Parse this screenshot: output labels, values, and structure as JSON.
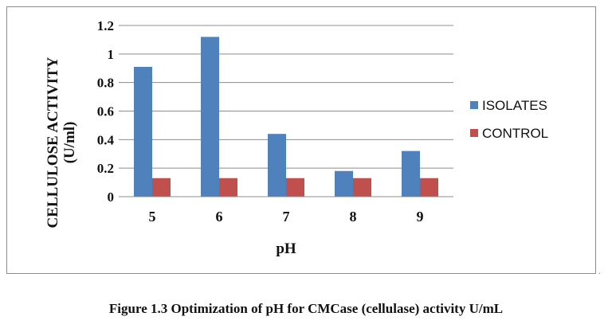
{
  "chart_data": {
    "type": "bar",
    "title": "",
    "xlabel": "pH",
    "ylabel_line1": "CELLULOSE ACTIVITY",
    "ylabel_line2": "(U/ml)",
    "categories": [
      "5",
      "6",
      "7",
      "8",
      "9"
    ],
    "series": [
      {
        "name": "ISOLATES",
        "color": "#4f81bd",
        "values": [
          0.91,
          1.12,
          0.44,
          0.18,
          0.32
        ]
      },
      {
        "name": "CONTROL",
        "color": "#c0504d",
        "values": [
          0.13,
          0.13,
          0.13,
          0.13,
          0.13
        ]
      }
    ],
    "ylim": [
      0,
      1.2
    ],
    "yticks": [
      "0",
      "0.2",
      "0.4",
      "0.6",
      "0.8",
      "1",
      "1.2"
    ],
    "grid": true,
    "legend_position": "right"
  },
  "caption": "Figure 1.3 Optimization of pH for CMCase (cellulase) activity U/mL",
  "corner_mark": "."
}
